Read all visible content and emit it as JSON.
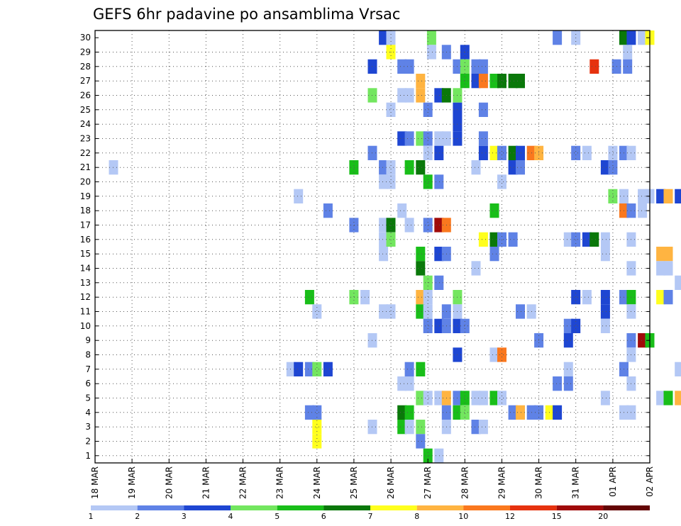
{
  "chart_data": {
    "type": "heatmap",
    "title": "GEFS 6hr padavine po ansamblima Vrsac",
    "xlabel": "",
    "ylabel": "",
    "x_tick_labels": [
      "18 MAR",
      "19 MAR",
      "20 MAR",
      "21 MAR",
      "22 MAR",
      "23 MAR",
      "24 MAR",
      "25 MAR",
      "26 MAR",
      "27 MAR",
      "28 MAR",
      "29 MAR",
      "30 MAR",
      "31 MAR",
      "01 APR",
      "02 APR"
    ],
    "y_tick_labels": [
      "1",
      "2",
      "3",
      "4",
      "5",
      "6",
      "7",
      "8",
      "9",
      "10",
      "11",
      "12",
      "13",
      "14",
      "15",
      "16",
      "17",
      "18",
      "19",
      "20",
      "21",
      "22",
      "23",
      "24",
      "25",
      "26",
      "27",
      "28",
      "29",
      "30"
    ],
    "grid": true,
    "legend": {
      "placement": "bottom",
      "tick_labels": [
        "1",
        "2",
        "3",
        "4",
        "5",
        "6",
        "7",
        "8",
        "10",
        "12",
        "15",
        "20"
      ],
      "colors": [
        "#b4c8f5",
        "#5f82e6",
        "#1e46d2",
        "#73e65f",
        "#19be19",
        "#0a780a",
        "#ffff1e",
        "#ffb441",
        "#fa781e",
        "#e6320f",
        "#a00a0a",
        "#640505"
      ]
    },
    "cells": [
      [
        25.8,
        30,
        3
      ],
      [
        26.0,
        30,
        1
      ],
      [
        27.1,
        30,
        4
      ],
      [
        30.5,
        30,
        2
      ],
      [
        31.0,
        30,
        1
      ],
      [
        32.3,
        30,
        6
      ],
      [
        32.5,
        30,
        3
      ],
      [
        32.8,
        30,
        1
      ],
      [
        33.0,
        30,
        7
      ],
      [
        26.0,
        29,
        7
      ],
      [
        27.1,
        29,
        1
      ],
      [
        27.5,
        29,
        2
      ],
      [
        28.0,
        29,
        3
      ],
      [
        32.4,
        29,
        1
      ],
      [
        25.5,
        28,
        3
      ],
      [
        26.3,
        28,
        2
      ],
      [
        26.5,
        28,
        2
      ],
      [
        27.8,
        28,
        2
      ],
      [
        28.0,
        28,
        4
      ],
      [
        28.3,
        28,
        2
      ],
      [
        28.5,
        28,
        2
      ],
      [
        31.5,
        28,
        10
      ],
      [
        32.1,
        28,
        2
      ],
      [
        32.4,
        28,
        2
      ],
      [
        28.0,
        27,
        5
      ],
      [
        28.3,
        27,
        3
      ],
      [
        28.5,
        27,
        9
      ],
      [
        28.8,
        27,
        5
      ],
      [
        29.0,
        27,
        6
      ],
      [
        29.3,
        27,
        6
      ],
      [
        29.5,
        27,
        6
      ],
      [
        26.8,
        27,
        8
      ],
      [
        25.5,
        26,
        4
      ],
      [
        26.3,
        26,
        1
      ],
      [
        26.5,
        26,
        1
      ],
      [
        26.8,
        26,
        8
      ],
      [
        27.3,
        26,
        3
      ],
      [
        27.5,
        26,
        6
      ],
      [
        27.8,
        26,
        4
      ],
      [
        26.0,
        25,
        1
      ],
      [
        27.0,
        25,
        2
      ],
      [
        28.5,
        25,
        2
      ],
      [
        27.8,
        25,
        3
      ],
      [
        27.8,
        24,
        3
      ],
      [
        26.3,
        23,
        3
      ],
      [
        26.5,
        23,
        2
      ],
      [
        26.8,
        23,
        4
      ],
      [
        27.0,
        23,
        2
      ],
      [
        27.3,
        23,
        1
      ],
      [
        27.5,
        23,
        1
      ],
      [
        27.8,
        23,
        3
      ],
      [
        28.5,
        23,
        2
      ],
      [
        25.5,
        22,
        2
      ],
      [
        27.0,
        22,
        1
      ],
      [
        27.3,
        22,
        3
      ],
      [
        28.5,
        22,
        3
      ],
      [
        28.8,
        22,
        7
      ],
      [
        29.0,
        22,
        2
      ],
      [
        29.3,
        22,
        6
      ],
      [
        29.5,
        22,
        3
      ],
      [
        29.8,
        22,
        9
      ],
      [
        30.0,
        22,
        8
      ],
      [
        31.0,
        22,
        2
      ],
      [
        31.3,
        22,
        1
      ],
      [
        32.0,
        22,
        1
      ],
      [
        32.3,
        22,
        2
      ],
      [
        32.5,
        22,
        1
      ],
      [
        18.5,
        21,
        1
      ],
      [
        25.0,
        21,
        5
      ],
      [
        25.8,
        21,
        2
      ],
      [
        26.0,
        21,
        1
      ],
      [
        26.5,
        21,
        5
      ],
      [
        26.8,
        21,
        6
      ],
      [
        28.3,
        21,
        1
      ],
      [
        29.3,
        21,
        3
      ],
      [
        29.5,
        21,
        2
      ],
      [
        31.8,
        21,
        3
      ],
      [
        32.0,
        21,
        2
      ],
      [
        25.8,
        20,
        1
      ],
      [
        26.0,
        20,
        1
      ],
      [
        27.0,
        20,
        5
      ],
      [
        27.3,
        20,
        2
      ],
      [
        29.0,
        20,
        1
      ],
      [
        23.5,
        19,
        1
      ],
      [
        32.0,
        19,
        4
      ],
      [
        32.3,
        19,
        1
      ],
      [
        32.8,
        19,
        1
      ],
      [
        33.0,
        19,
        1
      ],
      [
        33.3,
        19,
        3
      ],
      [
        33.5,
        19,
        8
      ],
      [
        33.8,
        19,
        3
      ],
      [
        24.3,
        18,
        2
      ],
      [
        26.3,
        18,
        1
      ],
      [
        28.8,
        18,
        5
      ],
      [
        32.3,
        18,
        9
      ],
      [
        32.5,
        18,
        2
      ],
      [
        32.8,
        18,
        1
      ],
      [
        25.0,
        17,
        2
      ],
      [
        25.8,
        17,
        1
      ],
      [
        26.0,
        17,
        6
      ],
      [
        26.5,
        17,
        1
      ],
      [
        27.0,
        17,
        2
      ],
      [
        27.3,
        17,
        11
      ],
      [
        27.5,
        17,
        9
      ],
      [
        25.8,
        16,
        1
      ],
      [
        26.0,
        16,
        4
      ],
      [
        28.5,
        16,
        7
      ],
      [
        28.8,
        16,
        6
      ],
      [
        29.0,
        16,
        2
      ],
      [
        29.3,
        16,
        2
      ],
      [
        30.8,
        16,
        1
      ],
      [
        31.0,
        16,
        2
      ],
      [
        31.3,
        16,
        3
      ],
      [
        31.5,
        16,
        6
      ],
      [
        31.8,
        16,
        1
      ],
      [
        32.5,
        16,
        1
      ],
      [
        25.8,
        15,
        1
      ],
      [
        26.8,
        15,
        5
      ],
      [
        27.3,
        15,
        3
      ],
      [
        27.5,
        15,
        2
      ],
      [
        28.8,
        15,
        2
      ],
      [
        31.8,
        15,
        1
      ],
      [
        33.3,
        15,
        8
      ],
      [
        33.5,
        15,
        8
      ],
      [
        26.8,
        14,
        6
      ],
      [
        28.3,
        14,
        1
      ],
      [
        32.5,
        14,
        1
      ],
      [
        33.3,
        14,
        1
      ],
      [
        33.5,
        14,
        1
      ],
      [
        27.0,
        13,
        4
      ],
      [
        27.3,
        13,
        2
      ],
      [
        33.8,
        13,
        1
      ],
      [
        23.8,
        12,
        5
      ],
      [
        25.0,
        12,
        4
      ],
      [
        25.3,
        12,
        1
      ],
      [
        26.8,
        12,
        8
      ],
      [
        27.0,
        12,
        1
      ],
      [
        27.8,
        12,
        4
      ],
      [
        31.0,
        12,
        3
      ],
      [
        31.3,
        12,
        1
      ],
      [
        31.8,
        12,
        3
      ],
      [
        32.3,
        12,
        2
      ],
      [
        32.5,
        12,
        5
      ],
      [
        33.3,
        12,
        7
      ],
      [
        33.5,
        12,
        2
      ],
      [
        24.0,
        11,
        1
      ],
      [
        25.8,
        11,
        1
      ],
      [
        26.0,
        11,
        1
      ],
      [
        26.8,
        11,
        5
      ],
      [
        27.0,
        11,
        1
      ],
      [
        27.5,
        11,
        2
      ],
      [
        27.8,
        11,
        1
      ],
      [
        29.5,
        11,
        2
      ],
      [
        29.8,
        11,
        1
      ],
      [
        31.8,
        11,
        3
      ],
      [
        32.5,
        11,
        1
      ],
      [
        27.0,
        10,
        2
      ],
      [
        27.3,
        10,
        3
      ],
      [
        27.5,
        10,
        2
      ],
      [
        27.8,
        10,
        3
      ],
      [
        28.0,
        10,
        2
      ],
      [
        30.8,
        10,
        2
      ],
      [
        31.0,
        10,
        3
      ],
      [
        31.8,
        10,
        1
      ],
      [
        25.5,
        9,
        1
      ],
      [
        30.0,
        9,
        2
      ],
      [
        30.8,
        9,
        3
      ],
      [
        32.5,
        9,
        2
      ],
      [
        32.8,
        9,
        11
      ],
      [
        33.0,
        9,
        5
      ],
      [
        27.8,
        8,
        3
      ],
      [
        28.8,
        8,
        1
      ],
      [
        29.0,
        8,
        9
      ],
      [
        32.5,
        8,
        1
      ],
      [
        23.3,
        7,
        1
      ],
      [
        23.5,
        7,
        3
      ],
      [
        23.8,
        7,
        2
      ],
      [
        24.0,
        7,
        4
      ],
      [
        24.3,
        7,
        3
      ],
      [
        26.5,
        7,
        2
      ],
      [
        26.8,
        7,
        5
      ],
      [
        30.8,
        7,
        1
      ],
      [
        32.3,
        7,
        2
      ],
      [
        33.8,
        7,
        1
      ],
      [
        26.3,
        6,
        1
      ],
      [
        26.5,
        6,
        1
      ],
      [
        30.5,
        6,
        2
      ],
      [
        30.8,
        6,
        2
      ],
      [
        32.5,
        6,
        1
      ],
      [
        26.8,
        5,
        4
      ],
      [
        27.0,
        5,
        1
      ],
      [
        27.3,
        5,
        1
      ],
      [
        27.5,
        5,
        8
      ],
      [
        27.8,
        5,
        2
      ],
      [
        28.0,
        5,
        5
      ],
      [
        28.3,
        5,
        1
      ],
      [
        28.5,
        5,
        1
      ],
      [
        28.8,
        5,
        5
      ],
      [
        29.0,
        5,
        1
      ],
      [
        31.8,
        5,
        1
      ],
      [
        33.3,
        5,
        1
      ],
      [
        33.5,
        5,
        5
      ],
      [
        33.8,
        5,
        8
      ],
      [
        23.8,
        4,
        2
      ],
      [
        24.0,
        4,
        2
      ],
      [
        26.3,
        4,
        6
      ],
      [
        26.5,
        4,
        5
      ],
      [
        27.5,
        4,
        2
      ],
      [
        27.8,
        4,
        5
      ],
      [
        28.0,
        4,
        4
      ],
      [
        29.3,
        4,
        2
      ],
      [
        29.5,
        4,
        8
      ],
      [
        29.8,
        4,
        2
      ],
      [
        30.0,
        4,
        2
      ],
      [
        30.3,
        4,
        7
      ],
      [
        30.5,
        4,
        3
      ],
      [
        32.3,
        4,
        1
      ],
      [
        32.5,
        4,
        1
      ],
      [
        24.0,
        3,
        7
      ],
      [
        25.5,
        3,
        1
      ],
      [
        26.3,
        3,
        5
      ],
      [
        26.5,
        3,
        1
      ],
      [
        26.8,
        3,
        4
      ],
      [
        27.5,
        3,
        1
      ],
      [
        28.3,
        3,
        2
      ],
      [
        28.5,
        3,
        1
      ],
      [
        24.0,
        2,
        7
      ],
      [
        26.8,
        2,
        2
      ],
      [
        27.0,
        1,
        5
      ],
      [
        27.3,
        1,
        1
      ]
    ]
  }
}
